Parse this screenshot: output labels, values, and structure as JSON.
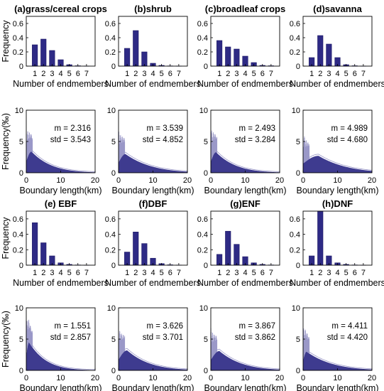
{
  "colors": {
    "bar": "#2e2a85",
    "bar_edge": "#1c1864",
    "curve": "#9a98c8",
    "axis": "#000000"
  },
  "chart_data": [
    {
      "id": "a-endm",
      "type": "bar",
      "title": "(a)grass/cereal crops",
      "categories": [
        "1",
        "2",
        "3",
        "4",
        "5",
        "6",
        "7"
      ],
      "values": [
        0.3,
        0.38,
        0.22,
        0.09,
        0.02,
        0.005,
        0.002
      ],
      "ylim": [
        0,
        0.7
      ],
      "yticks": [
        "0",
        "0.2",
        "0.4",
        "0.6"
      ],
      "xlabel": "Number of endmembers",
      "ylabel": "Frequency"
    },
    {
      "id": "b-endm",
      "type": "bar",
      "title": "(b)shrub",
      "categories": [
        "1",
        "2",
        "3",
        "4",
        "5",
        "6",
        "7"
      ],
      "values": [
        0.25,
        0.5,
        0.2,
        0.04,
        0.01,
        0.003,
        0.001
      ],
      "ylim": [
        0,
        0.7
      ],
      "yticks": [
        "0",
        "0.2",
        "0.4",
        "0.6"
      ],
      "xlabel": "Number of endmembers"
    },
    {
      "id": "c-endm",
      "type": "bar",
      "title": "(c)broadleaf crops",
      "categories": [
        "1",
        "2",
        "3",
        "4",
        "5",
        "6",
        "7"
      ],
      "values": [
        0.36,
        0.27,
        0.24,
        0.14,
        0.05,
        0.01,
        0.005
      ],
      "ylim": [
        0,
        0.7
      ],
      "yticks": [
        "0",
        "0.2",
        "0.4",
        "0.6"
      ],
      "xlabel": "Number of endmembers"
    },
    {
      "id": "d-endm",
      "type": "bar",
      "title": "(d)savanna",
      "categories": [
        "1",
        "2",
        "3",
        "4",
        "5",
        "6",
        "7"
      ],
      "values": [
        0.12,
        0.43,
        0.31,
        0.12,
        0.02,
        0.005,
        0.002
      ],
      "ylim": [
        0,
        0.7
      ],
      "yticks": [
        "0",
        "0.2",
        "0.4",
        "0.6"
      ],
      "xlabel": "Number of endmembers"
    },
    {
      "id": "a-bound",
      "type": "area",
      "xlim": [
        0,
        20
      ],
      "ylim": [
        0,
        10
      ],
      "xticks": [
        "0",
        "10",
        "20"
      ],
      "yticks": [
        "0",
        "5",
        "10"
      ],
      "xlabel": "Boundary length(km)",
      "ylabel": "Frequency(‰)",
      "m": "m = 2.316",
      "std": "std = 3.543",
      "mode": 1.5,
      "peak": 3.4,
      "decay": 0.17
    },
    {
      "id": "b-bound",
      "type": "area",
      "xlim": [
        0,
        20
      ],
      "ylim": [
        0,
        10
      ],
      "xticks": [
        "0",
        "10",
        "20"
      ],
      "yticks": [
        "0",
        "5",
        "10"
      ],
      "xlabel": "Boundary length(km)",
      "m": "m = 3.539",
      "std": "std = 4.852",
      "mode": 2.0,
      "peak": 3.0,
      "decay": 0.13
    },
    {
      "id": "c-bound",
      "type": "area",
      "xlim": [
        0,
        20
      ],
      "ylim": [
        0,
        10
      ],
      "xticks": [
        "0",
        "10",
        "20"
      ],
      "yticks": [
        "0",
        "5",
        "10"
      ],
      "xlabel": "Boundary length(km)",
      "m": "m = 2.493",
      "std": "std = 3.284",
      "mode": 1.5,
      "peak": 3.3,
      "decay": 0.17
    },
    {
      "id": "d-bound",
      "type": "area",
      "xlim": [
        0,
        20
      ],
      "ylim": [
        0,
        10
      ],
      "xticks": [
        "0",
        "10",
        "20"
      ],
      "yticks": [
        "0",
        "5",
        "10"
      ],
      "xlabel": "Boundary length(km)",
      "m": "m = 4.989",
      "std": "std = 4.680",
      "mode": 4.5,
      "peak": 2.7,
      "decay": 0.12
    },
    {
      "id": "e-endm",
      "type": "bar",
      "title": "(e) EBF",
      "categories": [
        "1",
        "2",
        "3",
        "4",
        "5",
        "6",
        "7"
      ],
      "values": [
        0.55,
        0.29,
        0.12,
        0.03,
        0.01,
        0.003,
        0.001
      ],
      "ylim": [
        0,
        0.7
      ],
      "yticks": [
        "0",
        "0.2",
        "0.4",
        "0.6"
      ],
      "xlabel": "Number of endmembers",
      "ylabel": "Frequency"
    },
    {
      "id": "f-endm",
      "type": "bar",
      "title": "(f)DBF",
      "categories": [
        "1",
        "2",
        "3",
        "4",
        "5",
        "6",
        "7"
      ],
      "values": [
        0.17,
        0.43,
        0.28,
        0.09,
        0.02,
        0.005,
        0.002
      ],
      "ylim": [
        0,
        0.7
      ],
      "yticks": [
        "0",
        "0.2",
        "0.4",
        "0.6"
      ],
      "xlabel": "Number of endmembers"
    },
    {
      "id": "g-endm",
      "type": "bar",
      "title": "(g)ENF",
      "categories": [
        "1",
        "2",
        "3",
        "4",
        "5",
        "6",
        "7"
      ],
      "values": [
        0.14,
        0.44,
        0.27,
        0.11,
        0.03,
        0.01,
        0.003
      ],
      "ylim": [
        0,
        0.7
      ],
      "yticks": [
        "0",
        "0.2",
        "0.4",
        "0.6"
      ],
      "xlabel": "Number of endmembers"
    },
    {
      "id": "h-endm",
      "type": "bar",
      "title": "(h)DNF",
      "categories": [
        "1",
        "2",
        "3",
        "4",
        "5",
        "6",
        "7"
      ],
      "values": [
        0.12,
        0.7,
        0.12,
        0.03,
        0.01,
        0.003,
        0.001
      ],
      "ylim": [
        0,
        0.7
      ],
      "yticks": [
        "0",
        "0.2",
        "0.4",
        "0.6"
      ],
      "xlabel": "Number of endmembers"
    },
    {
      "id": "e-bound",
      "type": "area",
      "xlim": [
        0,
        20
      ],
      "ylim": [
        0,
        10
      ],
      "xticks": [
        "0",
        "10",
        "20"
      ],
      "yticks": [
        "0",
        "5",
        "10"
      ],
      "xlabel": "Boundary length(km)",
      "ylabel": "Frequency(‰)",
      "m": "m = 1.551",
      "std": "std = 2.857",
      "mode": 0.8,
      "peak": 4.5,
      "decay": 0.2
    },
    {
      "id": "f-bound",
      "type": "area",
      "xlim": [
        0,
        20
      ],
      "ylim": [
        0,
        10
      ],
      "xticks": [
        "0",
        "10",
        "20"
      ],
      "yticks": [
        "0",
        "5",
        "10"
      ],
      "xlabel": "Boundary length(km)",
      "m": "m = 3.626",
      "std": "std = 3.701",
      "mode": 2.5,
      "peak": 3.2,
      "decay": 0.15
    },
    {
      "id": "g-bound",
      "type": "area",
      "xlim": [
        0,
        20
      ],
      "ylim": [
        0,
        10
      ],
      "xticks": [
        "0",
        "10",
        "20"
      ],
      "yticks": [
        "0",
        "5",
        "10"
      ],
      "xlabel": "Boundary length(km)",
      "m": "m = 3.867",
      "std": "std = 3.862",
      "mode": 2.5,
      "peak": 3.1,
      "decay": 0.15
    },
    {
      "id": "h-bound",
      "type": "area",
      "xlim": [
        0,
        20
      ],
      "ylim": [
        0,
        10
      ],
      "xticks": [
        "0",
        "10",
        "20"
      ],
      "yticks": [
        "0",
        "5",
        "10"
      ],
      "xlabel": "Boundary length(km)",
      "m": "m = 4.411",
      "std": "std = 4.420",
      "mode": 1.0,
      "peak": 3.0,
      "decay": 0.13
    }
  ]
}
